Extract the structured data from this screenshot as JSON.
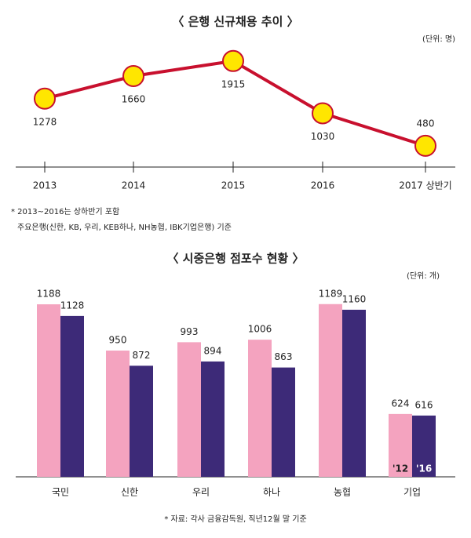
{
  "chart_data": [
    {
      "type": "line",
      "title": "〈 은행 신규채용 추이 〉",
      "unit": "(단위: 명)",
      "categories": [
        "2013",
        "2014",
        "2015",
        "2016",
        "2017 상반기"
      ],
      "values": [
        1278,
        1660,
        1915,
        1030,
        480
      ],
      "color": "#c8102e",
      "marker_color": "#ffe600",
      "notes": [
        "* 2013~2016는 상하반기 포함",
        "주요은행(신한, KB, 우리, KEB하나, NH농협, IBK기업은행) 기준"
      ]
    },
    {
      "type": "bar",
      "title": "〈 시중은행 점포수 현황 〉",
      "unit": "(단위: 개)",
      "categories": [
        "국민",
        "신한",
        "우리",
        "하나",
        "농협",
        "기업"
      ],
      "series": [
        {
          "name": "'12",
          "color": "#f4a3bf",
          "values": [
            1188,
            950,
            993,
            1006,
            1189,
            624
          ]
        },
        {
          "name": "'16",
          "color": "#3d2a78",
          "values": [
            1128,
            872,
            894,
            863,
            1160,
            616
          ]
        }
      ],
      "source": "* 자료: 각사 금융감독원, 직년12월 말 기준"
    }
  ]
}
